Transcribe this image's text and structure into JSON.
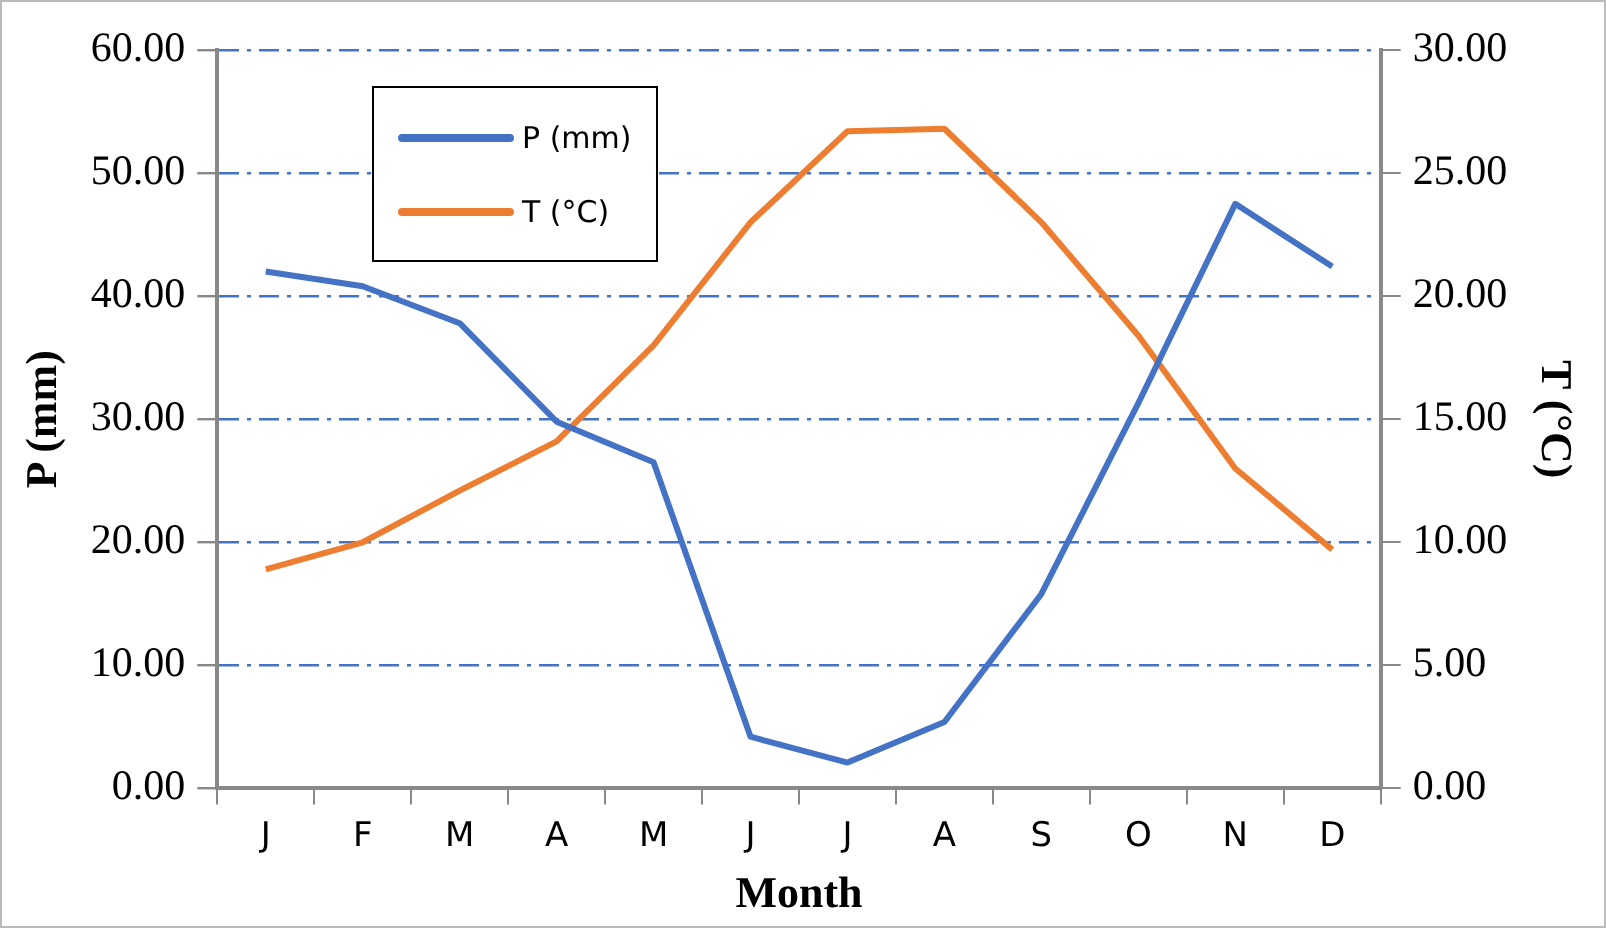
{
  "chart_data": {
    "type": "line",
    "xlabel": "Month",
    "ylabel": "P (mm)",
    "y2label": "T (°C)",
    "categories": [
      "J",
      "F",
      "M",
      "A",
      "M",
      "J",
      "J",
      "A",
      "S",
      "O",
      "N",
      "D"
    ],
    "series": [
      {
        "name": "P (mm)",
        "color": "#4472c4",
        "values": [
          42.0,
          40.8,
          37.8,
          29.8,
          26.5,
          4.2,
          2.1,
          5.4,
          15.8,
          31.3,
          47.5,
          42.4
        ]
      },
      {
        "name": "T (°C)",
        "color": "#ed7d31",
        "axis": "y2",
        "values": [
          8.9,
          10.0,
          12.1,
          14.1,
          18.0,
          23.0,
          26.7,
          26.8,
          23.0,
          18.4,
          13.0,
          9.7
        ]
      }
    ],
    "ylim": [
      0,
      60
    ],
    "yticks": [
      {
        "value": 0,
        "label": "0.00"
      },
      {
        "value": 10,
        "label": "10.00"
      },
      {
        "value": 20,
        "label": "20.00"
      },
      {
        "value": 30,
        "label": "30.00"
      },
      {
        "value": 40,
        "label": "40.00"
      },
      {
        "value": 50,
        "label": "50.00"
      },
      {
        "value": 60,
        "label": "60.00"
      }
    ],
    "y2lim": [
      0,
      30
    ],
    "y2ticks": [
      {
        "value": 0,
        "label": "0.00"
      },
      {
        "value": 5,
        "label": "5.00"
      },
      {
        "value": 10,
        "label": "10.00"
      },
      {
        "value": 15,
        "label": "15.00"
      },
      {
        "value": 20,
        "label": "20.00"
      },
      {
        "value": 25,
        "label": "25.00"
      },
      {
        "value": 30,
        "label": "30.00"
      }
    ],
    "grid": "y",
    "legend": "top left",
    "marker": "none",
    "line_style": "solid"
  }
}
